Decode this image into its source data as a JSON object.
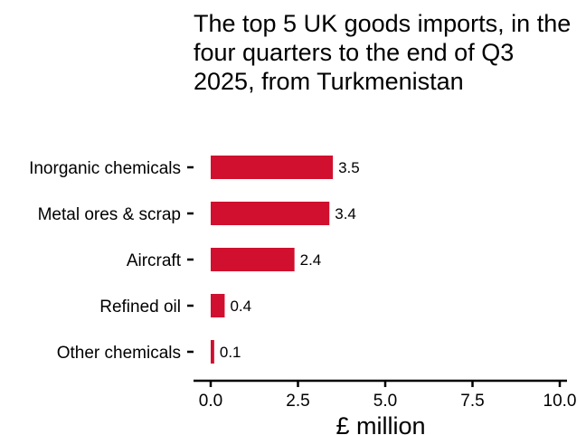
{
  "chart_data": {
    "type": "bar",
    "orientation": "horizontal",
    "title": "The top 5 UK goods imports, in the four quarters to the end of Q3 2025, from Turkmenistan",
    "xlabel": "£ million",
    "ylabel": "",
    "categories": [
      "Inorganic chemicals",
      "Metal ores & scrap",
      "Aircraft",
      "Refined oil",
      "Other chemicals"
    ],
    "values": [
      3.5,
      3.4,
      2.4,
      0.4,
      0.1
    ],
    "value_labels": [
      "3.5",
      "3.4",
      "2.4",
      "0.4",
      "0.1"
    ],
    "xlim": [
      0,
      10
    ],
    "xticks": [
      0,
      2.5,
      5,
      7.5,
      10
    ],
    "xtick_labels": [
      "0.0",
      "2.5",
      "5.0",
      "7.5",
      "10.0"
    ],
    "bar_color": "#d0102e",
    "grid": false,
    "legend": "none"
  }
}
